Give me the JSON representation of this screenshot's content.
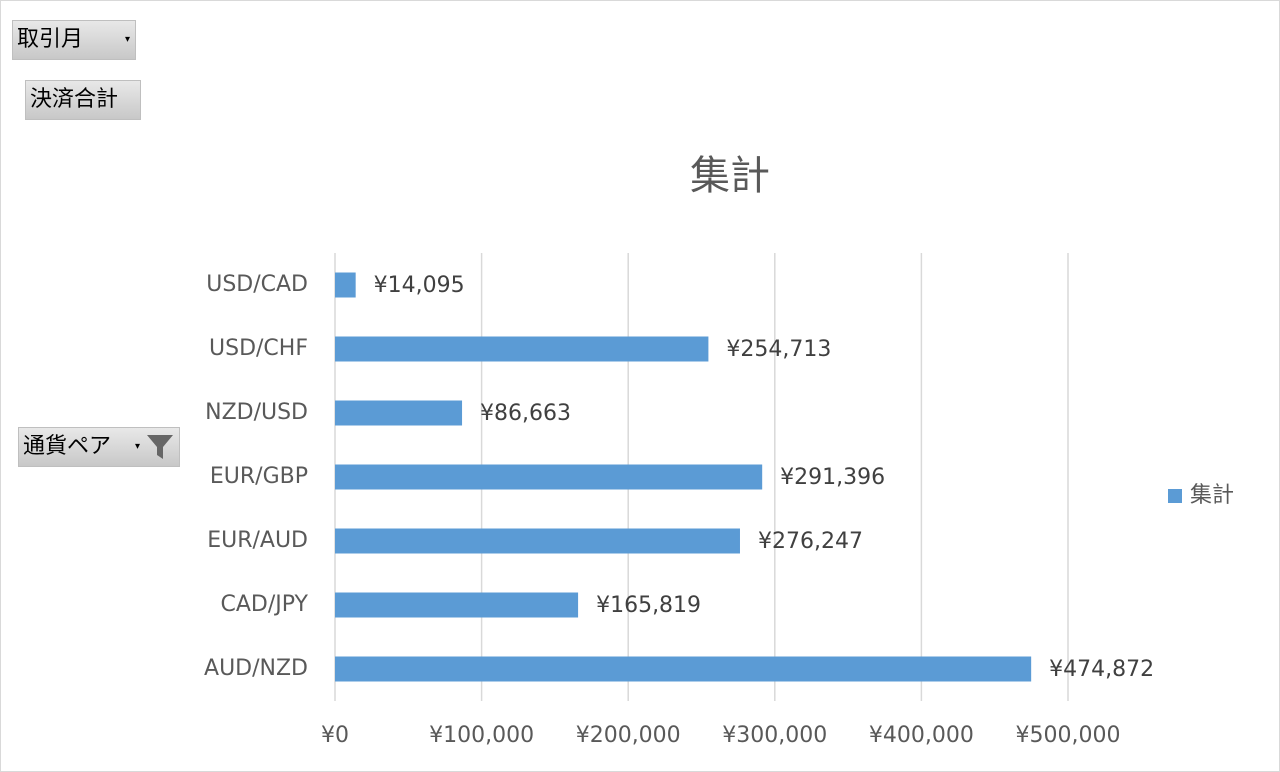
{
  "pivot_buttons": {
    "month": "取引月",
    "total": "決済合計",
    "pair": "通貨ペア"
  },
  "chart_data": {
    "type": "hbar",
    "title": "集計",
    "categories": [
      "USD/CAD",
      "USD/CHF",
      "NZD/USD",
      "EUR/GBP",
      "EUR/AUD",
      "CAD/JPY",
      "AUD/NZD"
    ],
    "series": [
      {
        "name": "集計",
        "color": "#5b9bd5",
        "values": [
          14095,
          254713,
          86663,
          291396,
          276247,
          165819,
          474872
        ],
        "value_labels": [
          "¥14,095",
          "¥254,713",
          "¥86,663",
          "¥291,396",
          "¥276,247",
          "¥165,819",
          "¥474,872"
        ]
      }
    ],
    "xlim": [
      0,
      500000
    ],
    "xticks": [
      {
        "value": 0,
        "label": "¥0"
      },
      {
        "value": 100000,
        "label": "¥100,000"
      },
      {
        "value": 200000,
        "label": "¥200,000"
      },
      {
        "value": 300000,
        "label": "¥300,000"
      },
      {
        "value": 400000,
        "label": "¥400,000"
      },
      {
        "value": 500000,
        "label": "¥500,000"
      }
    ],
    "grid": true,
    "legend": "right"
  }
}
